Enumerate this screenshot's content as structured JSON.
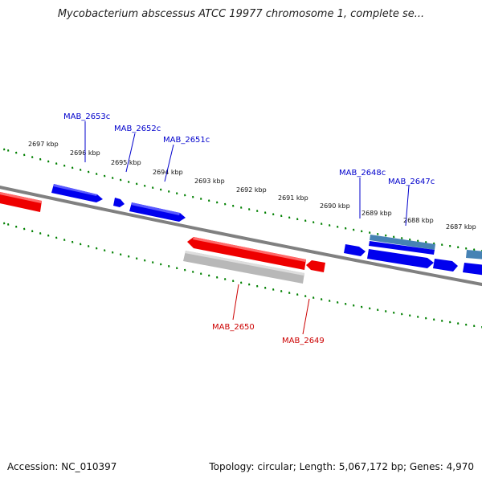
{
  "title": "Mycobacterium abscessus ATCC 19977 chromosome 1, complete se...",
  "footer": {
    "accession": "Accession: NC_010397",
    "summary": "Topology: circular; Length: 5,067,172 bp; Genes: 4,970"
  },
  "tick_labels": [
    "2697 kbp",
    "2696 kbp",
    "2695 kbp",
    "2694 kbp",
    "2693 kbp",
    "2692 kbp",
    "2691 kbp",
    "2690 kbp",
    "2689 kbp",
    "2688 kbp",
    "2687 kbp"
  ],
  "genes_forward_labels": [
    "MAB_2653c",
    "MAB_2652c",
    "MAB_2651c",
    "MAB_2648c",
    "MAB_2647c"
  ],
  "genes_reverse_labels": [
    "MAB_2650",
    "MAB_2649"
  ],
  "colors": {
    "forward": "#0000ee",
    "reverse": "#ee0000",
    "pseudo": "#b8b8b8",
    "rna": "#4682b4",
    "track": "#808080",
    "ticks": "#008000"
  }
}
